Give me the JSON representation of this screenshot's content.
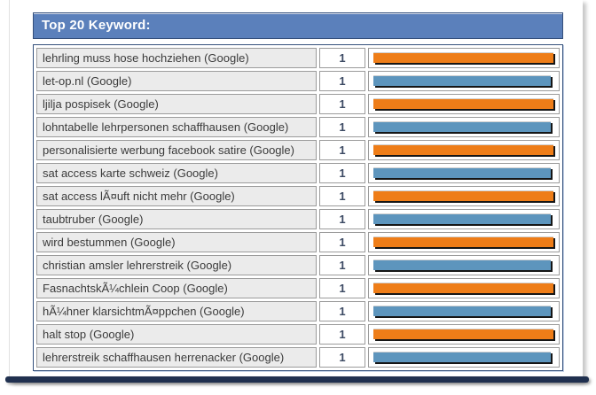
{
  "widget": {
    "title": "Top 20 Keyword:"
  },
  "table": {
    "rows": [
      {
        "keyword": "lehrling muss hose hochziehen (Google)",
        "count": "1",
        "bar_color": "orange"
      },
      {
        "keyword": "let-op.nl (Google)",
        "count": "1",
        "bar_color": "blue"
      },
      {
        "keyword": "ljilja pospisek (Google)",
        "count": "1",
        "bar_color": "orange"
      },
      {
        "keyword": "lohntabelle lehrpersonen schaffhausen (Google)",
        "count": "1",
        "bar_color": "blue"
      },
      {
        "keyword": "personalisierte werbung facebook satire (Google)",
        "count": "1",
        "bar_color": "orange"
      },
      {
        "keyword": "sat access karte schweiz (Google)",
        "count": "1",
        "bar_color": "blue"
      },
      {
        "keyword": "sat access lÃ¤uft nicht mehr (Google)",
        "count": "1",
        "bar_color": "orange"
      },
      {
        "keyword": "taubtruber (Google)",
        "count": "1",
        "bar_color": "blue"
      },
      {
        "keyword": "wird bestummen (Google)",
        "count": "1",
        "bar_color": "orange"
      },
      {
        "keyword": "christian amsler lehrerstreik (Google)",
        "count": "1",
        "bar_color": "blue"
      },
      {
        "keyword": "FasnachtskÃ¼chlein Coop (Google)",
        "count": "1",
        "bar_color": "orange"
      },
      {
        "keyword": "hÃ¼hner klarsichtmÃ¤ppchen (Google)",
        "count": "1",
        "bar_color": "blue"
      },
      {
        "keyword": "halt stop (Google)",
        "count": "1",
        "bar_color": "orange"
      },
      {
        "keyword": "lehrerstreik schaffhausen herrenacker (Google)",
        "count": "1",
        "bar_color": "blue"
      }
    ]
  },
  "colors": {
    "orange": "#ee7d18",
    "blue": "#5d95bd",
    "header_bg": "#5b80bb",
    "header_text": "#ffffff"
  }
}
